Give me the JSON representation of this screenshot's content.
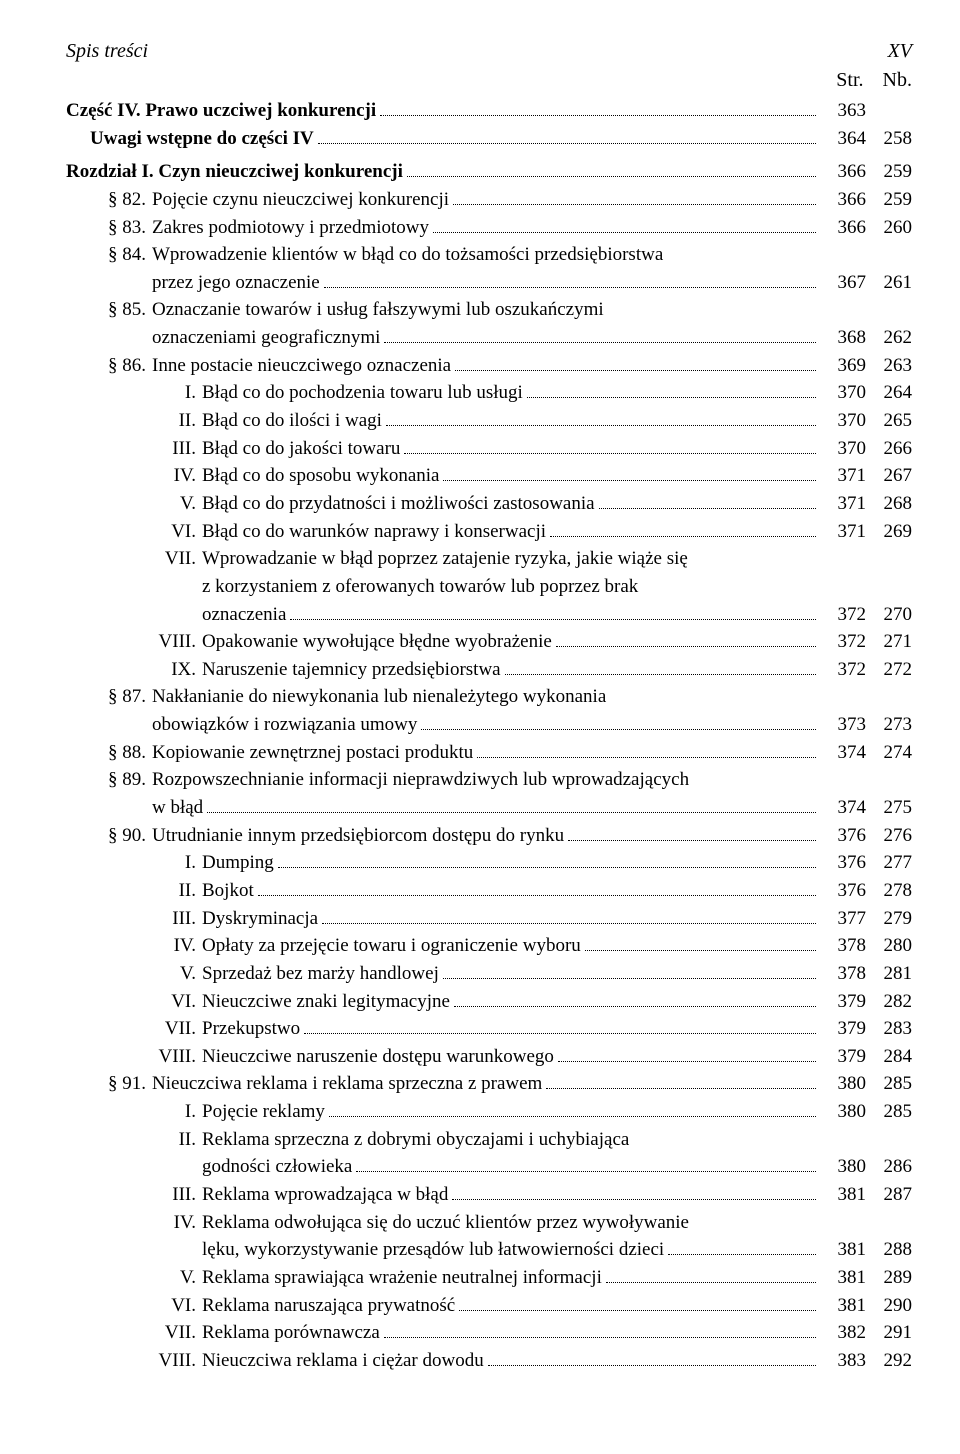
{
  "header": {
    "title": "Spis treści",
    "page_roman": "XV",
    "col_str": "Str.",
    "col_nb": "Nb."
  },
  "rows": [
    {
      "type": "part",
      "front": "",
      "label": "Część IV. Prawo uczciwej konkurencji",
      "pg": "363",
      "nb": "",
      "bold": true
    },
    {
      "type": "part",
      "front": "",
      "label": "Uwagi wstępne do części IV",
      "pg": "364",
      "nb": "258",
      "bold": true,
      "indent": 1
    },
    {
      "type": "spacer"
    },
    {
      "type": "chapter",
      "front": "",
      "label": "Rozdział I. Czyn nieuczciwej konkurencji",
      "pg": "366",
      "nb": "259",
      "bold": true
    },
    {
      "type": "section",
      "front": "§ 82.",
      "label": "Pojęcie czynu nieuczciwej konkurencji",
      "pg": "366",
      "nb": "259"
    },
    {
      "type": "section",
      "front": "§ 83.",
      "label": "Zakres podmiotowy i przedmiotowy",
      "pg": "366",
      "nb": "260"
    },
    {
      "type": "section",
      "front": "§ 84.",
      "label_lines": [
        "Wprowadzenie klientów w błąd co do tożsamości przedsiębiorstwa",
        "przez jego oznaczenie"
      ],
      "pg": "367",
      "nb": "261"
    },
    {
      "type": "section",
      "front": "§ 85.",
      "label_lines": [
        "Oznaczanie towarów i usług fałszywymi lub oszukańczymi",
        "oznaczeniami geograficznymi"
      ],
      "pg": "368",
      "nb": "262"
    },
    {
      "type": "section",
      "front": "§ 86.",
      "label": "Inne postacie nieuczciwego oznaczenia",
      "pg": "369",
      "nb": "263"
    },
    {
      "type": "sub",
      "front": "I.",
      "label": "Błąd co do pochodzenia towaru lub usługi",
      "pg": "370",
      "nb": "264"
    },
    {
      "type": "sub",
      "front": "II.",
      "label": "Błąd co do ilości i wagi",
      "pg": "370",
      "nb": "265"
    },
    {
      "type": "sub",
      "front": "III.",
      "label": "Błąd co do jakości towaru",
      "pg": "370",
      "nb": "266"
    },
    {
      "type": "sub",
      "front": "IV.",
      "label": "Błąd co do sposobu wykonania",
      "pg": "371",
      "nb": "267"
    },
    {
      "type": "sub",
      "front": "V.",
      "label": "Błąd co do przydatności i możliwości zastosowania",
      "pg": "371",
      "nb": "268"
    },
    {
      "type": "sub",
      "front": "VI.",
      "label": "Błąd co do warunków naprawy i konserwacji",
      "pg": "371",
      "nb": "269"
    },
    {
      "type": "sub",
      "front": "VII.",
      "label_lines": [
        "Wprowadzanie w błąd poprzez zatajenie ryzyka, jakie wiąże się",
        "z korzystaniem z oferowanych towarów lub poprzez brak",
        "oznaczenia"
      ],
      "pg": "372",
      "nb": "270"
    },
    {
      "type": "sub",
      "front": "VIII.",
      "label": "Opakowanie wywołujące błędne wyobrażenie",
      "pg": "372",
      "nb": "271"
    },
    {
      "type": "sub",
      "front": "IX.",
      "label": "Naruszenie tajemnicy przedsiębiorstwa",
      "pg": "372",
      "nb": "272"
    },
    {
      "type": "section",
      "front": "§ 87.",
      "label_lines": [
        "Nakłanianie do niewykonania lub nienależytego wykonania",
        "obowiązków i rozwiązania umowy"
      ],
      "pg": "373",
      "nb": "273"
    },
    {
      "type": "section",
      "front": "§ 88.",
      "label": "Kopiowanie zewnętrznej postaci produktu",
      "pg": "374",
      "nb": "274"
    },
    {
      "type": "section",
      "front": "§ 89.",
      "label_lines": [
        "Rozpowszechnianie informacji nieprawdziwych lub wprowadzających",
        "w błąd"
      ],
      "pg": "374",
      "nb": "275"
    },
    {
      "type": "section",
      "front": "§ 90.",
      "label": "Utrudnianie innym przedsiębiorcom dostępu do rynku",
      "pg": "376",
      "nb": "276"
    },
    {
      "type": "sub",
      "front": "I.",
      "label": "Dumping",
      "pg": "376",
      "nb": "277"
    },
    {
      "type": "sub",
      "front": "II.",
      "label": "Bojkot",
      "pg": "376",
      "nb": "278"
    },
    {
      "type": "sub",
      "front": "III.",
      "label": "Dyskryminacja",
      "pg": "377",
      "nb": "279"
    },
    {
      "type": "sub",
      "front": "IV.",
      "label": "Opłaty za przejęcie towaru i ograniczenie wyboru",
      "pg": "378",
      "nb": "280"
    },
    {
      "type": "sub",
      "front": "V.",
      "label": "Sprzedaż bez marży handlowej",
      "pg": "378",
      "nb": "281"
    },
    {
      "type": "sub",
      "front": "VI.",
      "label": "Nieuczciwe znaki legitymacyjne",
      "pg": "379",
      "nb": "282"
    },
    {
      "type": "sub",
      "front": "VII.",
      "label": "Przekupstwo",
      "pg": "379",
      "nb": "283"
    },
    {
      "type": "sub",
      "front": "VIII.",
      "label": "Nieuczciwe naruszenie dostępu warunkowego",
      "pg": "379",
      "nb": "284"
    },
    {
      "type": "section",
      "front": "§ 91.",
      "label": "Nieuczciwa reklama i reklama sprzeczna z prawem",
      "pg": "380",
      "nb": "285"
    },
    {
      "type": "sub",
      "front": "I.",
      "label": "Pojęcie reklamy",
      "pg": "380",
      "nb": "285"
    },
    {
      "type": "sub",
      "front": "II.",
      "label_lines": [
        "Reklama sprzeczna z dobrymi obyczajami i uchybiająca",
        "godności człowieka"
      ],
      "pg": "380",
      "nb": "286"
    },
    {
      "type": "sub",
      "front": "III.",
      "label": "Reklama wprowadzająca w błąd",
      "pg": "381",
      "nb": "287"
    },
    {
      "type": "sub",
      "front": "IV.",
      "label_lines": [
        "Reklama odwołująca się do uczuć klientów przez wywoływanie",
        "lęku, wykorzystywanie przesądów lub łatwowierności dzieci"
      ],
      "pg": "381",
      "nb": "288"
    },
    {
      "type": "sub",
      "front": "V.",
      "label": "Reklama sprawiająca wrażenie neutralnej informacji",
      "pg": "381",
      "nb": "289"
    },
    {
      "type": "sub",
      "front": "VI.",
      "label": "Reklama naruszająca prywatność",
      "pg": "381",
      "nb": "290"
    },
    {
      "type": "sub",
      "front": "VII.",
      "label": "Reklama porównawcza",
      "pg": "382",
      "nb": "291"
    },
    {
      "type": "sub",
      "front": "VIII.",
      "label": "Nieuczciwa reklama i ciężar dowodu",
      "pg": "383",
      "nb": "292"
    }
  ]
}
